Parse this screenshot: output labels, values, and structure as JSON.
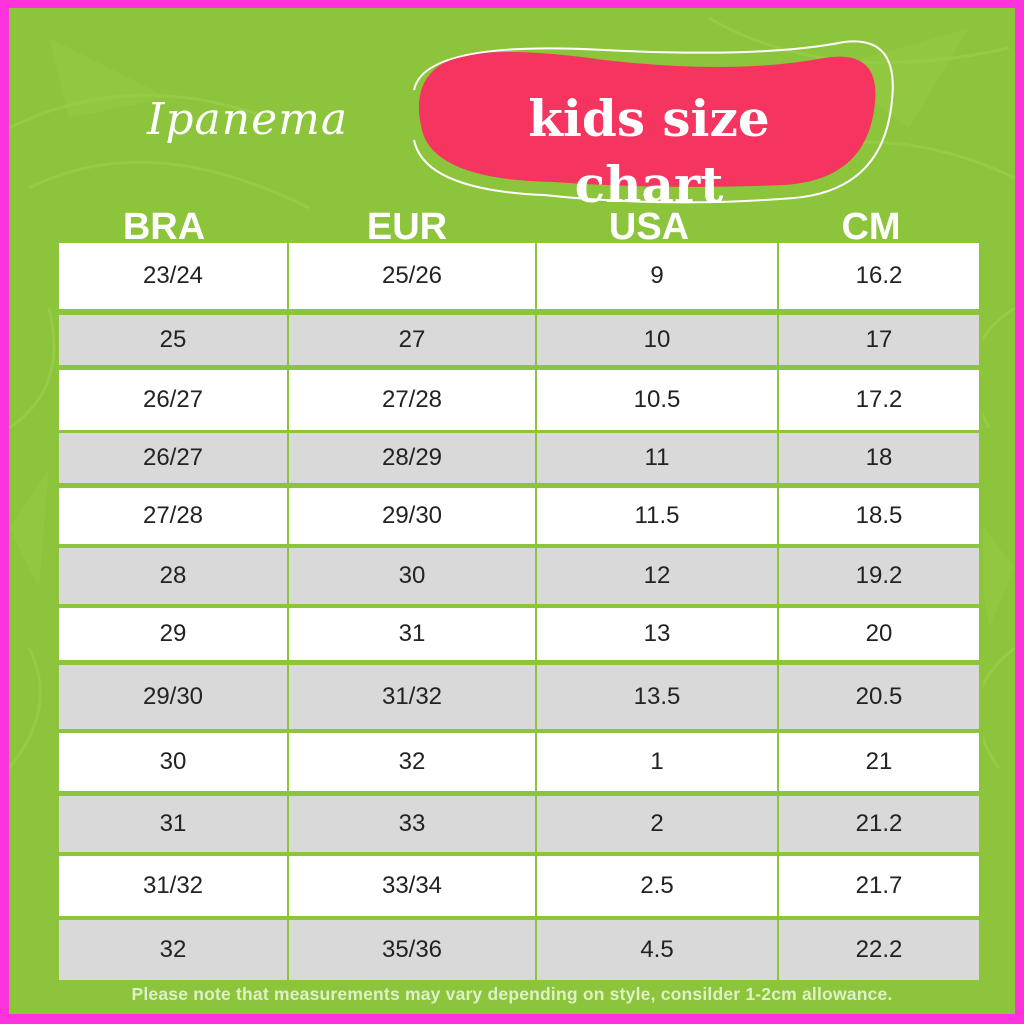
{
  "brand": {
    "logo_text": "Ipanema"
  },
  "title": "kids size chart",
  "colors": {
    "background": "#8cc43b",
    "border": "#ff33dd",
    "title_blob": "#f5345f",
    "row_white": "#ffffff",
    "row_grey": "#d9d9d9"
  },
  "table": {
    "columns": [
      "BRA",
      "EUR",
      "USA",
      "CM"
    ],
    "rows": [
      [
        "23/24",
        "25/26",
        "9",
        "16.2"
      ],
      [
        "25",
        "27",
        "10",
        "17"
      ],
      [
        "26/27",
        "27/28",
        "10.5",
        "17.2"
      ],
      [
        "26/27",
        "28/29",
        "11",
        "18"
      ],
      [
        "27/28",
        "29/30",
        "11.5",
        "18.5"
      ],
      [
        "28",
        "30",
        "12",
        "19.2"
      ],
      [
        "29",
        "31",
        "13",
        "20"
      ],
      [
        "29/30",
        "31/32",
        "13.5",
        "20.5"
      ],
      [
        "30",
        "32",
        "1",
        "21"
      ],
      [
        "31",
        "33",
        "2",
        "21.2"
      ],
      [
        "31/32",
        "33/34",
        "2.5",
        "21.7"
      ],
      [
        "32",
        "35/36",
        "4.5",
        "22.2"
      ]
    ]
  },
  "note": "Please note that measurements may vary depending on style, consilder 1-2cm allowance."
}
